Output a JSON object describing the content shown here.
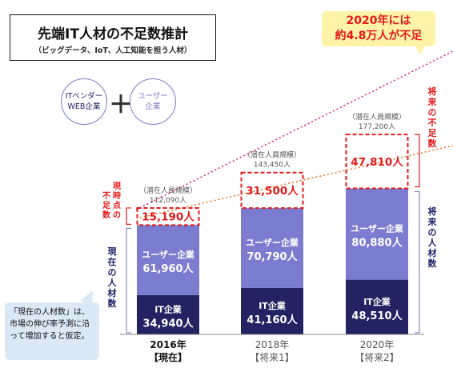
{
  "title": "先端IT人材の不足数推計",
  "subtitle": "（ビッグデータ、IoT、人工知能を担う人材）",
  "legend": {
    "it_vendor": "ITベンダー\nWEB企業",
    "plus": "＋",
    "user_company": "ユーザー\n企業"
  },
  "callout": {
    "line1": "2020年には",
    "line2": "約4.8万人が不足"
  },
  "note": "「現在の人材数」は、市場の伸び率予測に沿って増加すると仮定。",
  "side_labels": {
    "current_shortage": "現時点の不足数",
    "current_staff": "現在の人材数",
    "future_shortage": "将来の不足数",
    "future_staff": "将来の人材数"
  },
  "colors": {
    "it_company": "#232363",
    "user_company": "#7b7ccf",
    "shortage_border": "#e31a1a",
    "shortage_text": "#e31a1a",
    "potential_line": "#d41c7c",
    "current_line": "#e8731a"
  },
  "chart_data": {
    "type": "bar",
    "stacked": true,
    "categories": [
      "2016年【現在】",
      "2018年【将来1】",
      "2020年【将来2】"
    ],
    "category_year": [
      "2016年",
      "2018年",
      "2020年"
    ],
    "category_tag": [
      "【現在】",
      "【将来1】",
      "【将来2】"
    ],
    "series": [
      {
        "name": "IT企業",
        "values": [
          34940,
          41160,
          48510
        ],
        "labels": [
          "34,940人",
          "41,160人",
          "48,510人"
        ]
      },
      {
        "name": "ユーザー企業",
        "values": [
          61960,
          70790,
          80880
        ],
        "labels": [
          "61,960人",
          "70,790人",
          "80,880人"
        ]
      },
      {
        "name": "不足数",
        "values": [
          15190,
          31500,
          47810
        ],
        "labels": [
          "15,190人",
          "31,500人",
          "47,810人"
        ]
      }
    ],
    "potential_label": "（潜在人員規模）",
    "potential": [
      112090,
      143450,
      177200
    ],
    "potential_labels": [
      "112,090人",
      "143,450人",
      "177,200人"
    ],
    "ylim": [
      0,
      195000
    ]
  }
}
